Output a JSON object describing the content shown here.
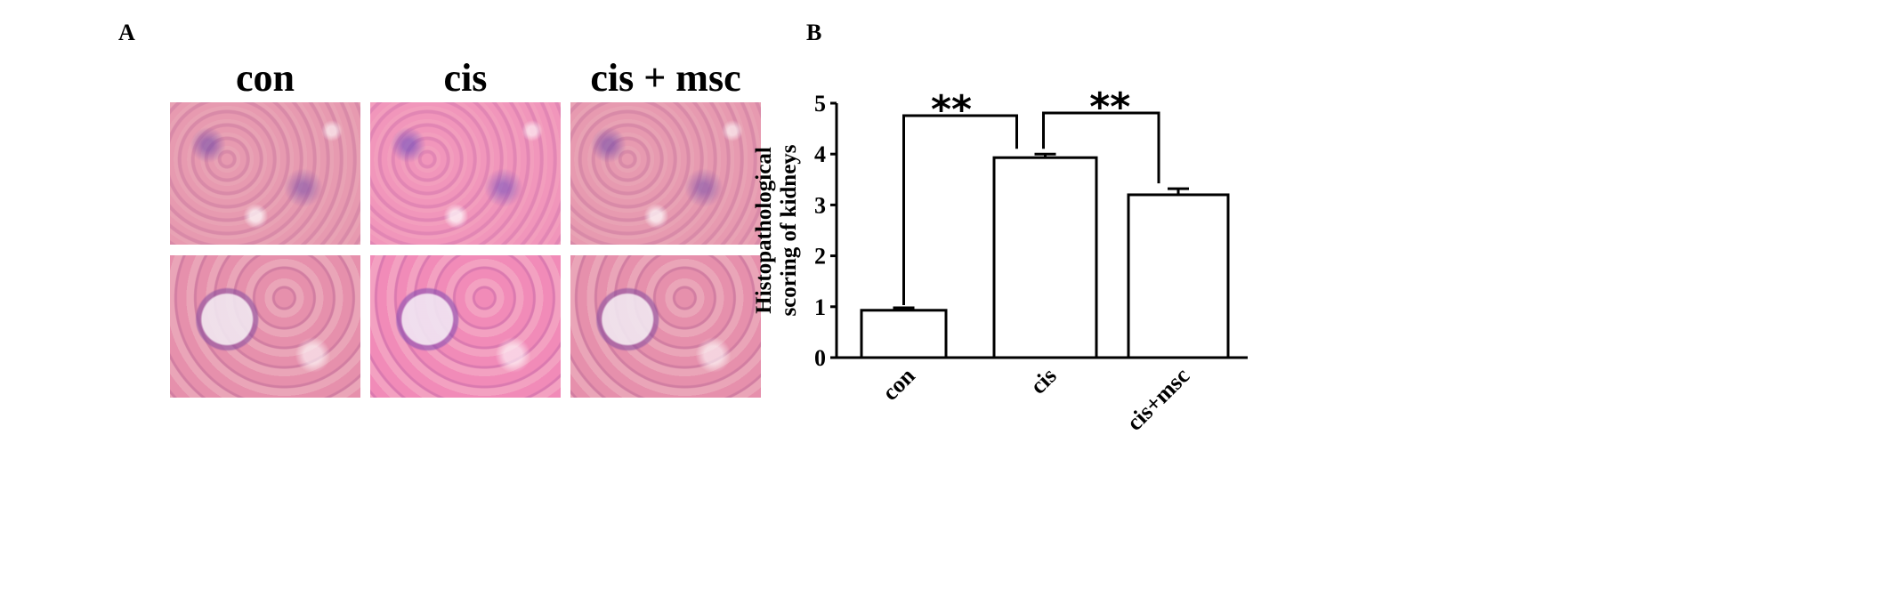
{
  "panel_a": {
    "label": "A",
    "columns": [
      "con",
      "cis",
      "cis + msc"
    ]
  },
  "panel_b": {
    "label": "B"
  },
  "chart_data": {
    "type": "bar",
    "categories": [
      "con",
      "cis",
      "cis+msc"
    ],
    "values": [
      0.93,
      3.93,
      3.2
    ],
    "errors": [
      0.05,
      0.07,
      0.12
    ],
    "ylabel": "Histopathological scoring of kidneys",
    "xlabel": "",
    "ylim": [
      0,
      5
    ],
    "yticks": [
      "0",
      "1",
      "2",
      "3",
      "4",
      "5"
    ],
    "grid": false,
    "significance": [
      {
        "from": "con",
        "to": "cis",
        "label": "**"
      },
      {
        "from": "cis",
        "to": "cis+msc",
        "label": "**"
      }
    ],
    "bar_color": "#ffffff",
    "edge_color": "#000000"
  }
}
